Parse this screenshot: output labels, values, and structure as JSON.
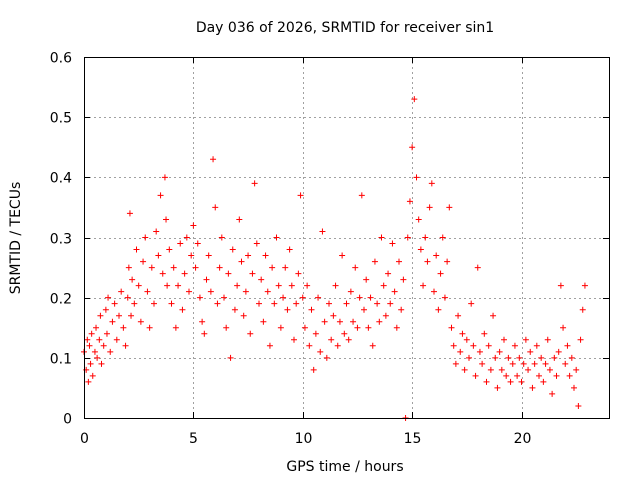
{
  "chart_data": {
    "type": "scatter",
    "title": "Day 036 of 2026, SRMTID for receiver sin1",
    "xlabel": "GPS time / hours",
    "ylabel": "SRMTID / TECUs",
    "xlim": [
      0,
      24
    ],
    "ylim": [
      0,
      0.6
    ],
    "xticks": [
      0,
      5,
      10,
      15,
      20
    ],
    "yticks": [
      0,
      0.1,
      0.2,
      0.3,
      0.4,
      0.5,
      0.6
    ],
    "xtick_labels": [
      "0",
      "5",
      "10",
      "15",
      "20"
    ],
    "ytick_labels": [
      "0",
      "0.1",
      "0.2",
      "0.3",
      "0.4",
      "0.5",
      "0.6"
    ],
    "grid": true,
    "marker": "+",
    "color": "#ff0000",
    "series": [
      {
        "name": "SRMTID",
        "points": [
          [
            0.0,
            0.11
          ],
          [
            0.1,
            0.08
          ],
          [
            0.15,
            0.13
          ],
          [
            0.2,
            0.06
          ],
          [
            0.25,
            0.12
          ],
          [
            0.3,
            0.09
          ],
          [
            0.35,
            0.14
          ],
          [
            0.4,
            0.07
          ],
          [
            0.5,
            0.11
          ],
          [
            0.55,
            0.15
          ],
          [
            0.6,
            0.1
          ],
          [
            0.7,
            0.13
          ],
          [
            0.75,
            0.17
          ],
          [
            0.8,
            0.09
          ],
          [
            0.9,
            0.12
          ],
          [
            1.0,
            0.18
          ],
          [
            1.05,
            0.14
          ],
          [
            1.1,
            0.2
          ],
          [
            1.2,
            0.11
          ],
          [
            1.3,
            0.16
          ],
          [
            1.4,
            0.19
          ],
          [
            1.5,
            0.13
          ],
          [
            1.6,
            0.17
          ],
          [
            1.7,
            0.21
          ],
          [
            1.8,
            0.15
          ],
          [
            1.9,
            0.12
          ],
          [
            2.0,
            0.2
          ],
          [
            2.05,
            0.25
          ],
          [
            2.1,
            0.34
          ],
          [
            2.15,
            0.17
          ],
          [
            2.2,
            0.23
          ],
          [
            2.3,
            0.19
          ],
          [
            2.4,
            0.28
          ],
          [
            2.5,
            0.22
          ],
          [
            2.6,
            0.16
          ],
          [
            2.7,
            0.26
          ],
          [
            2.8,
            0.3
          ],
          [
            2.9,
            0.21
          ],
          [
            3.0,
            0.15
          ],
          [
            3.1,
            0.25
          ],
          [
            3.2,
            0.19
          ],
          [
            3.3,
            0.31
          ],
          [
            3.4,
            0.27
          ],
          [
            3.5,
            0.37
          ],
          [
            3.6,
            0.24
          ],
          [
            3.7,
            0.4
          ],
          [
            3.75,
            0.33
          ],
          [
            3.8,
            0.22
          ],
          [
            3.9,
            0.28
          ],
          [
            4.0,
            0.19
          ],
          [
            4.1,
            0.25
          ],
          [
            4.2,
            0.15
          ],
          [
            4.3,
            0.22
          ],
          [
            4.4,
            0.29
          ],
          [
            4.5,
            0.18
          ],
          [
            4.6,
            0.24
          ],
          [
            4.7,
            0.3
          ],
          [
            4.8,
            0.21
          ],
          [
            4.9,
            0.27
          ],
          [
            5.0,
            0.32
          ],
          [
            5.1,
            0.25
          ],
          [
            5.2,
            0.29
          ],
          [
            5.3,
            0.2
          ],
          [
            5.4,
            0.16
          ],
          [
            5.5,
            0.14
          ],
          [
            5.6,
            0.23
          ],
          [
            5.7,
            0.27
          ],
          [
            5.8,
            0.21
          ],
          [
            5.9,
            0.43
          ],
          [
            6.0,
            0.35
          ],
          [
            6.1,
            0.19
          ],
          [
            6.2,
            0.25
          ],
          [
            6.3,
            0.3
          ],
          [
            6.4,
            0.2
          ],
          [
            6.5,
            0.15
          ],
          [
            6.6,
            0.24
          ],
          [
            6.7,
            0.1
          ],
          [
            6.8,
            0.28
          ],
          [
            6.9,
            0.18
          ],
          [
            7.0,
            0.22
          ],
          [
            7.1,
            0.33
          ],
          [
            7.2,
            0.26
          ],
          [
            7.3,
            0.17
          ],
          [
            7.4,
            0.21
          ],
          [
            7.5,
            0.27
          ],
          [
            7.6,
            0.14
          ],
          [
            7.7,
            0.24
          ],
          [
            7.8,
            0.39
          ],
          [
            7.9,
            0.29
          ],
          [
            8.0,
            0.19
          ],
          [
            8.1,
            0.23
          ],
          [
            8.2,
            0.16
          ],
          [
            8.3,
            0.27
          ],
          [
            8.4,
            0.21
          ],
          [
            8.5,
            0.12
          ],
          [
            8.6,
            0.25
          ],
          [
            8.7,
            0.19
          ],
          [
            8.8,
            0.3
          ],
          [
            8.9,
            0.22
          ],
          [
            9.0,
            0.15
          ],
          [
            9.1,
            0.2
          ],
          [
            9.2,
            0.25
          ],
          [
            9.3,
            0.18
          ],
          [
            9.4,
            0.28
          ],
          [
            9.5,
            0.22
          ],
          [
            9.6,
            0.13
          ],
          [
            9.7,
            0.19
          ],
          [
            9.8,
            0.24
          ],
          [
            9.9,
            0.37
          ],
          [
            10.0,
            0.2
          ],
          [
            10.1,
            0.15
          ],
          [
            10.2,
            0.22
          ],
          [
            10.3,
            0.12
          ],
          [
            10.4,
            0.18
          ],
          [
            10.5,
            0.08
          ],
          [
            10.6,
            0.14
          ],
          [
            10.7,
            0.2
          ],
          [
            10.8,
            0.11
          ],
          [
            10.9,
            0.31
          ],
          [
            11.0,
            0.16
          ],
          [
            11.1,
            0.1
          ],
          [
            11.2,
            0.19
          ],
          [
            11.3,
            0.13
          ],
          [
            11.4,
            0.17
          ],
          [
            11.5,
            0.22
          ],
          [
            11.6,
            0.12
          ],
          [
            11.7,
            0.16
          ],
          [
            11.8,
            0.27
          ],
          [
            11.9,
            0.14
          ],
          [
            12.0,
            0.19
          ],
          [
            12.1,
            0.13
          ],
          [
            12.2,
            0.21
          ],
          [
            12.3,
            0.16
          ],
          [
            12.4,
            0.25
          ],
          [
            12.5,
            0.15
          ],
          [
            12.6,
            0.2
          ],
          [
            12.7,
            0.37
          ],
          [
            12.8,
            0.18
          ],
          [
            12.9,
            0.23
          ],
          [
            13.0,
            0.15
          ],
          [
            13.1,
            0.2
          ],
          [
            13.2,
            0.12
          ],
          [
            13.3,
            0.26
          ],
          [
            13.4,
            0.19
          ],
          [
            13.5,
            0.16
          ],
          [
            13.6,
            0.3
          ],
          [
            13.7,
            0.22
          ],
          [
            13.8,
            0.17
          ],
          [
            13.9,
            0.24
          ],
          [
            14.0,
            0.19
          ],
          [
            14.1,
            0.29
          ],
          [
            14.2,
            0.21
          ],
          [
            14.3,
            0.15
          ],
          [
            14.4,
            0.26
          ],
          [
            14.5,
            0.18
          ],
          [
            14.6,
            0.23
          ],
          [
            14.7,
            0.0
          ],
          [
            14.8,
            0.3
          ],
          [
            14.9,
            0.36
          ],
          [
            15.0,
            0.45
          ],
          [
            15.1,
            0.53
          ],
          [
            15.2,
            0.4
          ],
          [
            15.3,
            0.33
          ],
          [
            15.4,
            0.28
          ],
          [
            15.5,
            0.22
          ],
          [
            15.6,
            0.3
          ],
          [
            15.7,
            0.26
          ],
          [
            15.8,
            0.35
          ],
          [
            15.9,
            0.39
          ],
          [
            16.0,
            0.21
          ],
          [
            16.1,
            0.27
          ],
          [
            16.2,
            0.18
          ],
          [
            16.3,
            0.24
          ],
          [
            16.4,
            0.3
          ],
          [
            16.5,
            0.2
          ],
          [
            16.6,
            0.26
          ],
          [
            16.7,
            0.35
          ],
          [
            16.8,
            0.15
          ],
          [
            16.9,
            0.12
          ],
          [
            17.0,
            0.09
          ],
          [
            17.1,
            0.17
          ],
          [
            17.2,
            0.11
          ],
          [
            17.3,
            0.14
          ],
          [
            17.4,
            0.08
          ],
          [
            17.5,
            0.13
          ],
          [
            17.6,
            0.1
          ],
          [
            17.7,
            0.19
          ],
          [
            17.8,
            0.12
          ],
          [
            17.9,
            0.07
          ],
          [
            18.0,
            0.25
          ],
          [
            18.1,
            0.11
          ],
          [
            18.2,
            0.09
          ],
          [
            18.3,
            0.14
          ],
          [
            18.4,
            0.06
          ],
          [
            18.5,
            0.12
          ],
          [
            18.6,
            0.08
          ],
          [
            18.7,
            0.17
          ],
          [
            18.8,
            0.1
          ],
          [
            18.9,
            0.05
          ],
          [
            19.0,
            0.11
          ],
          [
            19.1,
            0.08
          ],
          [
            19.2,
            0.13
          ],
          [
            19.3,
            0.07
          ],
          [
            19.4,
            0.1
          ],
          [
            19.5,
            0.06
          ],
          [
            19.6,
            0.09
          ],
          [
            19.7,
            0.12
          ],
          [
            19.8,
            0.07
          ],
          [
            19.9,
            0.1
          ],
          [
            20.0,
            0.06
          ],
          [
            20.1,
            0.09
          ],
          [
            20.2,
            0.13
          ],
          [
            20.3,
            0.08
          ],
          [
            20.4,
            0.11
          ],
          [
            20.5,
            0.05
          ],
          [
            20.6,
            0.09
          ],
          [
            20.7,
            0.12
          ],
          [
            20.8,
            0.07
          ],
          [
            20.9,
            0.1
          ],
          [
            21.0,
            0.06
          ],
          [
            21.1,
            0.09
          ],
          [
            21.2,
            0.13
          ],
          [
            21.3,
            0.08
          ],
          [
            21.4,
            0.04
          ],
          [
            21.5,
            0.1
          ],
          [
            21.6,
            0.07
          ],
          [
            21.7,
            0.11
          ],
          [
            21.8,
            0.22
          ],
          [
            21.9,
            0.15
          ],
          [
            22.0,
            0.09
          ],
          [
            22.1,
            0.12
          ],
          [
            22.2,
            0.07
          ],
          [
            22.3,
            0.1
          ],
          [
            22.4,
            0.05
          ],
          [
            22.5,
            0.08
          ],
          [
            22.6,
            0.02
          ],
          [
            22.7,
            0.13
          ],
          [
            22.8,
            0.18
          ],
          [
            22.9,
            0.22
          ]
        ]
      }
    ]
  }
}
